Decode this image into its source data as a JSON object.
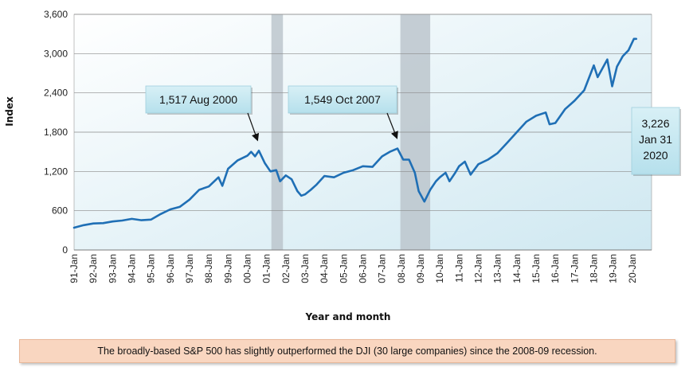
{
  "chart_data": {
    "type": "line",
    "xlabel": "Year and month",
    "ylabel": "Index",
    "ylim": [
      0,
      3600
    ],
    "yticks": [
      "0",
      "600",
      "1,200",
      "1,800",
      "2,400",
      "3,000",
      "3,600"
    ],
    "ytick_values": [
      0,
      600,
      1200,
      1800,
      2400,
      3000,
      3600
    ],
    "xtick_labels": [
      "91-Jan",
      "92-Jan",
      "93-Jan",
      "94-Jan",
      "95-Jan",
      "96-Jan",
      "97-Jan",
      "98-Jan",
      "99-Jan",
      "00-Jan",
      "01-Jan",
      "02-Jan",
      "03-Jan",
      "04-Jan",
      "05-Jan",
      "06-Jan",
      "07-Jan",
      "08-Jan",
      "09-Jan",
      "10-Jan",
      "11-Jan",
      "12-Jan",
      "13-Jan",
      "14-Jan",
      "15-Jan",
      "16-Jan",
      "17-Jan",
      "18-Jan",
      "19-Jan",
      "20-Jan"
    ],
    "xlim": [
      1991.0,
      2021.0
    ],
    "grid": "horizontal",
    "line_color": "#1f6fb5",
    "recession_color": "#bcc6cc",
    "recessions": [
      {
        "start": 2001.25,
        "end": 2001.85
      },
      {
        "start": 2007.95,
        "end": 2009.5
      }
    ],
    "series": [
      {
        "values": [
          [
            1991.0,
            340
          ],
          [
            1991.5,
            380
          ],
          [
            1992.0,
            405
          ],
          [
            1992.5,
            410
          ],
          [
            1993.0,
            435
          ],
          [
            1993.5,
            450
          ],
          [
            1994.0,
            475
          ],
          [
            1994.5,
            455
          ],
          [
            1995.0,
            465
          ],
          [
            1995.5,
            550
          ],
          [
            1996.0,
            620
          ],
          [
            1996.5,
            660
          ],
          [
            1997.0,
            770
          ],
          [
            1997.5,
            920
          ],
          [
            1998.0,
            970
          ],
          [
            1998.5,
            1110
          ],
          [
            1998.7,
            980
          ],
          [
            1999.0,
            1240
          ],
          [
            1999.5,
            1370
          ],
          [
            2000.0,
            1440
          ],
          [
            2000.2,
            1500
          ],
          [
            2000.4,
            1430
          ],
          [
            2000.6,
            1517
          ],
          [
            2000.9,
            1330
          ],
          [
            2001.2,
            1200
          ],
          [
            2001.5,
            1220
          ],
          [
            2001.7,
            1050
          ],
          [
            2002.0,
            1140
          ],
          [
            2002.3,
            1080
          ],
          [
            2002.6,
            900
          ],
          [
            2002.8,
            830
          ],
          [
            2003.0,
            850
          ],
          [
            2003.3,
            920
          ],
          [
            2003.6,
            1000
          ],
          [
            2004.0,
            1130
          ],
          [
            2004.5,
            1110
          ],
          [
            2005.0,
            1180
          ],
          [
            2005.5,
            1220
          ],
          [
            2006.0,
            1280
          ],
          [
            2006.5,
            1270
          ],
          [
            2007.0,
            1430
          ],
          [
            2007.4,
            1500
          ],
          [
            2007.8,
            1549
          ],
          [
            2008.1,
            1380
          ],
          [
            2008.4,
            1380
          ],
          [
            2008.7,
            1180
          ],
          [
            2008.9,
            900
          ],
          [
            2009.2,
            740
          ],
          [
            2009.5,
            920
          ],
          [
            2009.8,
            1050
          ],
          [
            2010.0,
            1110
          ],
          [
            2010.3,
            1180
          ],
          [
            2010.5,
            1050
          ],
          [
            2010.8,
            1180
          ],
          [
            2011.0,
            1280
          ],
          [
            2011.3,
            1350
          ],
          [
            2011.6,
            1150
          ],
          [
            2012.0,
            1310
          ],
          [
            2012.5,
            1380
          ],
          [
            2013.0,
            1480
          ],
          [
            2013.5,
            1640
          ],
          [
            2014.0,
            1800
          ],
          [
            2014.5,
            1960
          ],
          [
            2015.0,
            2050
          ],
          [
            2015.5,
            2100
          ],
          [
            2015.7,
            1920
          ],
          [
            2016.0,
            1940
          ],
          [
            2016.5,
            2150
          ],
          [
            2017.0,
            2280
          ],
          [
            2017.5,
            2440
          ],
          [
            2018.0,
            2820
          ],
          [
            2018.2,
            2640
          ],
          [
            2018.7,
            2910
          ],
          [
            2018.95,
            2500
          ],
          [
            2019.2,
            2800
          ],
          [
            2019.5,
            2960
          ],
          [
            2019.8,
            3050
          ],
          [
            2020.08,
            3226
          ],
          [
            2020.2,
            3226
          ]
        ]
      }
    ],
    "annotations": [
      {
        "label": "1,517 Aug 2000",
        "x": 2000.6,
        "y": 1517
      },
      {
        "label": "1,549 Oct 2007",
        "x": 2007.8,
        "y": 1549
      },
      {
        "lines": [
          "3,226",
          "Jan 31",
          "2020"
        ],
        "x": 2020.08,
        "y": 3226
      }
    ]
  },
  "footer": {
    "note": "The broadly-based S&P 500 has slightly outperformed the DJI (30 large companies) since the 2008-09 recession."
  }
}
